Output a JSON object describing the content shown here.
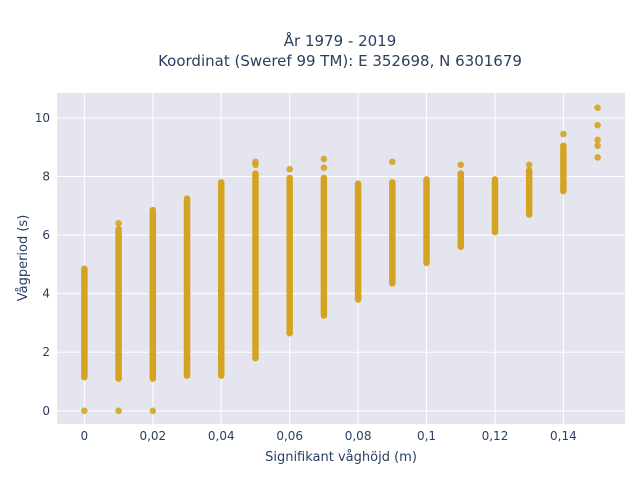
{
  "chart_data": {
    "type": "scatter",
    "title_line1": "År 1979 - 2019",
    "title_line2": "Koordinat (Sweref 99 TM): E 352698, N 6301679",
    "xlabel": "Signifikant våghöjd (m)",
    "ylabel": "Vågperiod (s)",
    "xlim": [
      -0.008,
      0.158
    ],
    "ylim": [
      -0.45,
      10.85
    ],
    "x_ticks": [
      0,
      0.02,
      0.04,
      0.06,
      0.08,
      0.1,
      0.12,
      0.14
    ],
    "x_tick_labels": [
      "0",
      "0,02",
      "0,04",
      "0,06",
      "0,08",
      "0,1",
      "0,12",
      "0,14"
    ],
    "y_ticks": [
      0,
      2,
      4,
      6,
      8,
      10
    ],
    "y_tick_labels": [
      "0",
      "2",
      "4",
      "6",
      "8",
      "10"
    ],
    "grid": true,
    "marker_color": "#d4a017",
    "plot_background": "#e5e5ef",
    "columns": [
      {
        "x": 0.0,
        "min": 1.15,
        "max": 4.85,
        "outliers": [
          0.0
        ]
      },
      {
        "x": 0.01,
        "min": 1.1,
        "max": 6.2,
        "outliers": [
          6.4,
          0.0
        ]
      },
      {
        "x": 0.02,
        "min": 1.1,
        "max": 6.85,
        "outliers": [
          0.0
        ]
      },
      {
        "x": 0.03,
        "min": 1.2,
        "max": 7.25,
        "outliers": []
      },
      {
        "x": 0.04,
        "min": 1.2,
        "max": 7.8,
        "outliers": []
      },
      {
        "x": 0.05,
        "min": 1.8,
        "max": 8.1,
        "outliers": [
          8.4,
          8.5
        ]
      },
      {
        "x": 0.06,
        "min": 2.65,
        "max": 7.95,
        "outliers": [
          8.25
        ]
      },
      {
        "x": 0.07,
        "min": 3.25,
        "max": 7.95,
        "outliers": [
          8.3,
          8.6
        ]
      },
      {
        "x": 0.08,
        "min": 3.8,
        "max": 7.75,
        "outliers": []
      },
      {
        "x": 0.09,
        "min": 4.35,
        "max": 7.8,
        "outliers": [
          8.5
        ]
      },
      {
        "x": 0.1,
        "min": 5.05,
        "max": 7.9,
        "outliers": []
      },
      {
        "x": 0.11,
        "min": 5.6,
        "max": 8.1,
        "outliers": [
          8.4
        ]
      },
      {
        "x": 0.12,
        "min": 6.1,
        "max": 7.9,
        "outliers": []
      },
      {
        "x": 0.13,
        "min": 6.7,
        "max": 8.2,
        "outliers": [
          8.4
        ]
      },
      {
        "x": 0.14,
        "min": 7.5,
        "max": 9.05,
        "outliers": [
          9.45
        ]
      },
      {
        "x": 0.15,
        "min": 8.65,
        "max": 8.65,
        "outliers": [
          9.05,
          9.25,
          9.75,
          10.35
        ]
      }
    ]
  }
}
